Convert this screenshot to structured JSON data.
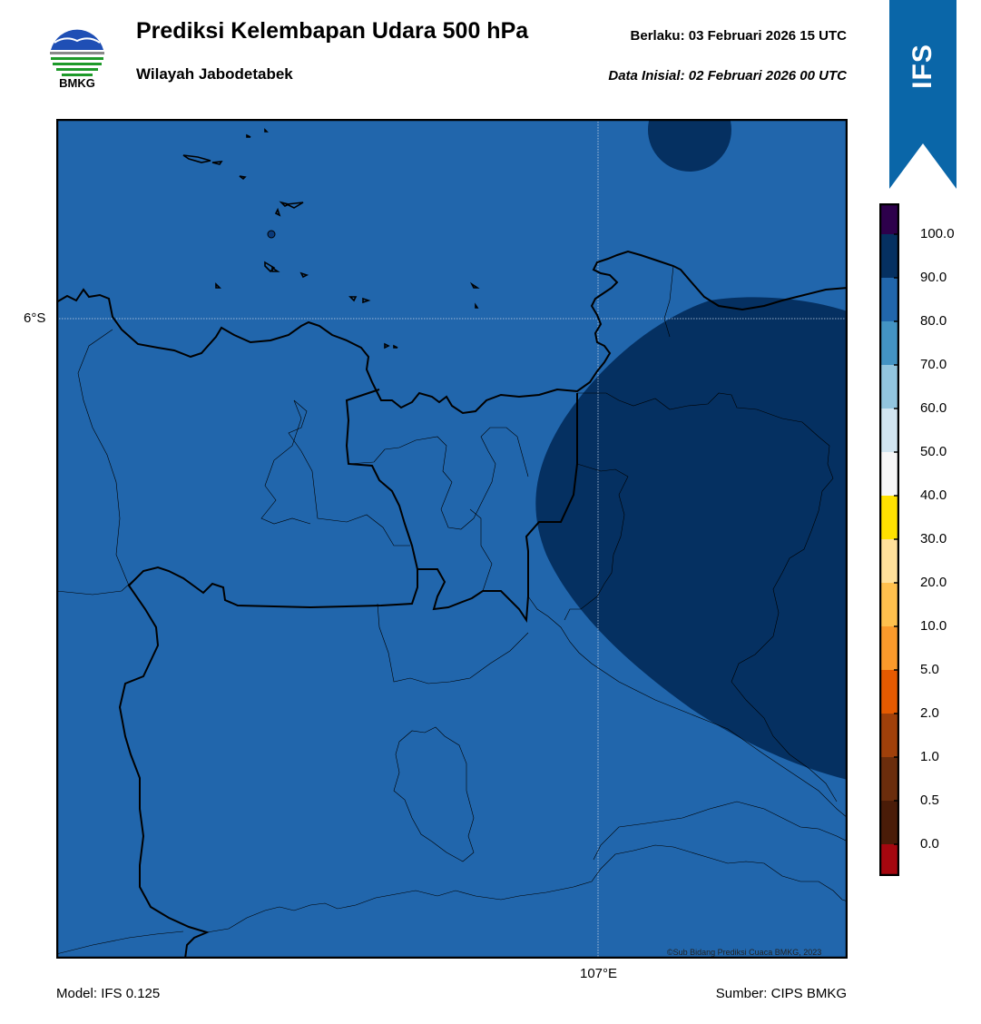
{
  "header": {
    "title": "Prediksi Kelembapan Udara 500 hPa",
    "subtitle": "Wilayah Jabodetabek",
    "valid": "Berlaku:  03 Februari 2026 15 UTC",
    "init": "Data Inisial:  02 Februari 2026 00 UTC"
  },
  "logo": {
    "text": "BMKG"
  },
  "ribbon": {
    "text": "IFS",
    "color": "#0a66a8"
  },
  "map": {
    "lat_label": "6°S",
    "lon_label": "107°E",
    "credit": "©Sub Bidang Prediksi Cuaca BMKG, 2023",
    "base_color": "#2166ac",
    "humid_color": "#053061",
    "border_color": "#000000"
  },
  "footer": {
    "model": "Model: IFS 0.125",
    "source": "Sumber: CIPS BMKG"
  },
  "colorbar": {
    "labels": [
      "100.0",
      "90.0",
      "80.0",
      "70.0",
      "60.0",
      "50.0",
      "40.0",
      "30.0",
      "20.0",
      "10.0",
      "5.0",
      "2.0",
      "1.0",
      "0.5",
      "0.0"
    ],
    "colors_top_to_bottom": [
      "#2d004b",
      "#053061",
      "#2166ac",
      "#4393c3",
      "#92c5de",
      "#d1e5f0",
      "#f7f7f7",
      "#ffe100",
      "#ffe09a",
      "#ffc04d",
      "#fb9a2b",
      "#e65a00",
      "#a0400a",
      "#6b2d0c",
      "#4a1c08",
      "#a5070f",
      "#e8352a"
    ]
  }
}
